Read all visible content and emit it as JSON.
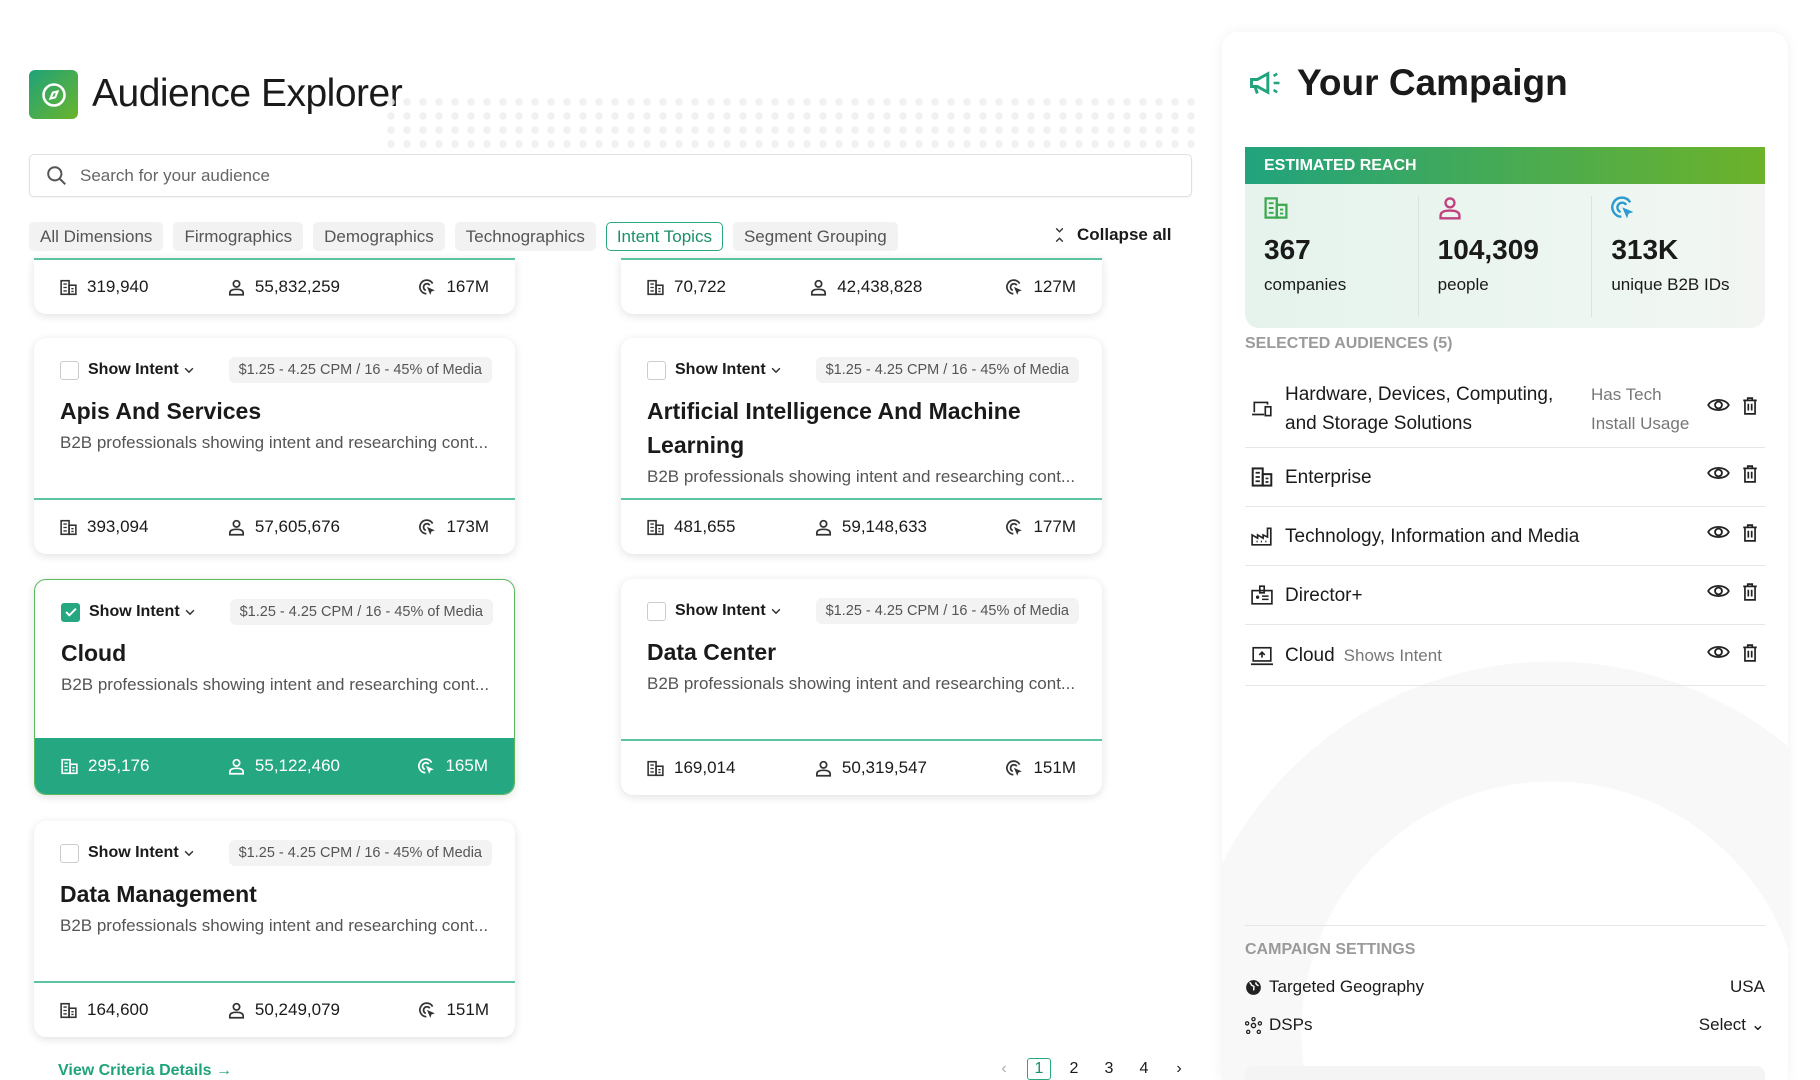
{
  "header": {
    "title": "Audience Explorer",
    "logo_icon": "compass-icon"
  },
  "search": {
    "placeholder": "Search for your audience",
    "value": ""
  },
  "tabs": [
    {
      "label": "All Dimensions",
      "active": false
    },
    {
      "label": "Firmographics",
      "active": false
    },
    {
      "label": "Demographics",
      "active": false
    },
    {
      "label": "Technographics",
      "active": false
    },
    {
      "label": "Intent Topics",
      "active": true
    },
    {
      "label": "Segment Grouping",
      "active": false
    }
  ],
  "collapse_label": "Collapse all",
  "partial_cards": [
    {
      "companies": "319,940",
      "people": "55,832,259",
      "ids": "167M"
    },
    {
      "companies": "70,722",
      "people": "42,438,828",
      "ids": "127M"
    }
  ],
  "cards": [
    {
      "title": "Apis And Services",
      "checked": false,
      "intent_label": "Show Intent",
      "price": "$1.25 - 4.25 CPM / 16 - 45% of Media",
      "desc": "B2B professionals showing intent and researching cont...",
      "companies": "393,094",
      "people": "57,605,676",
      "ids": "173M"
    },
    {
      "title": "Artificial Intelligence And Machine Learning",
      "checked": false,
      "intent_label": "Show Intent",
      "price": "$1.25 - 4.25 CPM / 16 - 45% of Media",
      "desc": "B2B professionals showing intent and researching cont...",
      "companies": "481,655",
      "people": "59,148,633",
      "ids": "177M"
    },
    {
      "title": "Cloud",
      "checked": true,
      "intent_label": "Show Intent",
      "price": "$1.25 - 4.25 CPM / 16 - 45% of Media",
      "desc": "B2B professionals showing intent and researching cont...",
      "companies": "295,176",
      "people": "55,122,460",
      "ids": "165M"
    },
    {
      "title": "Data Center",
      "checked": false,
      "intent_label": "Show Intent",
      "price": "$1.25 - 4.25 CPM / 16 - 45% of Media",
      "desc": "B2B professionals showing intent and researching cont...",
      "companies": "169,014",
      "people": "50,319,547",
      "ids": "151M"
    },
    {
      "title": "Data Management",
      "checked": false,
      "intent_label": "Show Intent",
      "price": "$1.25 - 4.25 CPM / 16 - 45% of Media",
      "desc": "B2B professionals showing intent and researching cont...",
      "companies": "164,600",
      "people": "50,249,079",
      "ids": "151M"
    }
  ],
  "footer": {
    "link": "View Criteria Details",
    "pages": [
      "1",
      "2",
      "3",
      "4"
    ],
    "current_page": "1"
  },
  "campaign": {
    "title": "Your Campaign",
    "reach_header": "ESTIMATED REACH",
    "reach": [
      {
        "value": "367",
        "label": "companies",
        "icon": "building-icon",
        "color": "#3aa94e"
      },
      {
        "value": "104,309",
        "label": "people",
        "icon": "person-icon",
        "color": "#c0437f"
      },
      {
        "value": "313K",
        "label": "unique B2B IDs",
        "icon": "target-cursor-icon",
        "color": "#2d9bd0"
      }
    ],
    "selected_header": "SELECTED AUDIENCES (5)",
    "audiences": [
      {
        "name": "Hardware, Devices, Computing, and Storage Solutions",
        "tag": "Has Tech Install Usage",
        "icon": "devices-icon"
      },
      {
        "name": "Enterprise",
        "tag": "",
        "icon": "building-icon"
      },
      {
        "name": "Technology, Information and Media",
        "tag": "",
        "icon": "factory-icon"
      },
      {
        "name": "Director+",
        "tag": "",
        "icon": "id-badge-icon"
      },
      {
        "name": "Cloud",
        "tag": "Shows Intent",
        "icon": "upload-screen-icon"
      }
    ],
    "settings_header": "CAMPAIGN SETTINGS",
    "settings": [
      {
        "label": "Targeted Geography",
        "value": "USA",
        "icon": "globe-icon"
      },
      {
        "label": "DSPs",
        "value": "Select",
        "icon": "network-icon"
      }
    ]
  },
  "colors": {
    "accent": "#25a782",
    "accent_light": "#6cb22a"
  }
}
